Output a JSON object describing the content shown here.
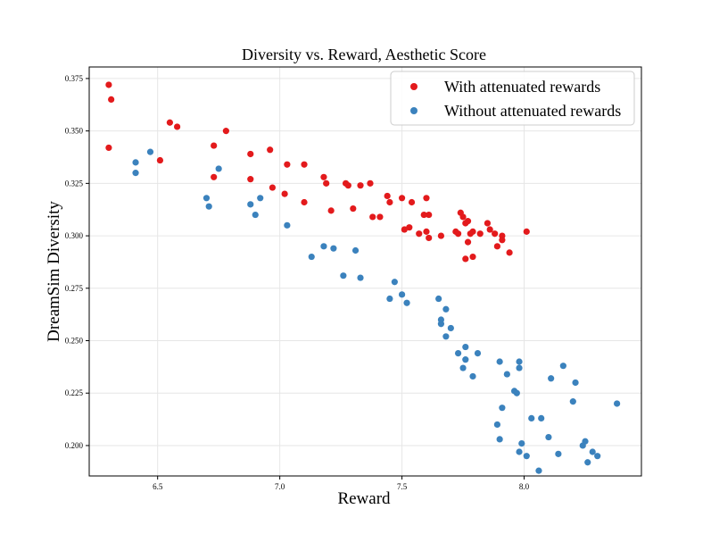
{
  "chart_data": {
    "type": "scatter",
    "title": "Diversity vs. Reward,  Aesthetic Score",
    "xlabel": "Reward",
    "ylabel": "DreamSim Diversity",
    "xlim": [
      6.22,
      8.48
    ],
    "ylim": [
      0.1855,
      0.3805
    ],
    "xticks": [
      6.5,
      7.0,
      7.5,
      8.0
    ],
    "xtick_labels": [
      "6.5",
      "7.0",
      "7.5",
      "8.0"
    ],
    "yticks": [
      0.2,
      0.225,
      0.25,
      0.275,
      0.3,
      0.325,
      0.35,
      0.375
    ],
    "ytick_labels": [
      "0.200",
      "0.225",
      "0.250",
      "0.275",
      "0.300",
      "0.325",
      "0.350",
      "0.375"
    ],
    "grid": true,
    "legend_position": "top-right",
    "series": [
      {
        "name": "With attenuated rewards",
        "color": "#e31a1c",
        "points": [
          [
            6.3,
            0.372
          ],
          [
            6.31,
            0.365
          ],
          [
            6.3,
            0.342
          ],
          [
            6.55,
            0.354
          ],
          [
            6.58,
            0.352
          ],
          [
            6.51,
            0.336
          ],
          [
            6.73,
            0.343
          ],
          [
            6.78,
            0.35
          ],
          [
            6.73,
            0.328
          ],
          [
            6.88,
            0.339
          ],
          [
            6.96,
            0.341
          ],
          [
            6.88,
            0.327
          ],
          [
            6.97,
            0.323
          ],
          [
            7.02,
            0.32
          ],
          [
            7.03,
            0.334
          ],
          [
            7.1,
            0.334
          ],
          [
            7.1,
            0.316
          ],
          [
            7.18,
            0.328
          ],
          [
            7.19,
            0.325
          ],
          [
            7.21,
            0.312
          ],
          [
            7.27,
            0.325
          ],
          [
            7.28,
            0.324
          ],
          [
            7.3,
            0.313
          ],
          [
            7.33,
            0.324
          ],
          [
            7.37,
            0.325
          ],
          [
            7.38,
            0.309
          ],
          [
            7.41,
            0.309
          ],
          [
            7.44,
            0.319
          ],
          [
            7.45,
            0.316
          ],
          [
            7.5,
            0.318
          ],
          [
            7.51,
            0.303
          ],
          [
            7.53,
            0.304
          ],
          [
            7.54,
            0.316
          ],
          [
            7.57,
            0.301
          ],
          [
            7.59,
            0.31
          ],
          [
            7.6,
            0.318
          ],
          [
            7.61,
            0.31
          ],
          [
            7.6,
            0.302
          ],
          [
            7.61,
            0.299
          ],
          [
            7.66,
            0.3
          ],
          [
            7.72,
            0.302
          ],
          [
            7.73,
            0.301
          ],
          [
            7.74,
            0.311
          ],
          [
            7.75,
            0.309
          ],
          [
            7.76,
            0.306
          ],
          [
            7.77,
            0.307
          ],
          [
            7.77,
            0.297
          ],
          [
            7.78,
            0.301
          ],
          [
            7.79,
            0.302
          ],
          [
            7.76,
            0.289
          ],
          [
            7.79,
            0.29
          ],
          [
            7.82,
            0.301
          ],
          [
            7.85,
            0.306
          ],
          [
            7.86,
            0.303
          ],
          [
            7.88,
            0.301
          ],
          [
            7.89,
            0.295
          ],
          [
            7.91,
            0.3
          ],
          [
            7.91,
            0.298
          ],
          [
            7.94,
            0.292
          ],
          [
            8.01,
            0.302
          ]
        ]
      },
      {
        "name": "Without attenuated rewards",
        "color": "#3b82bd",
        "points": [
          [
            6.41,
            0.335
          ],
          [
            6.41,
            0.33
          ],
          [
            6.47,
            0.34
          ],
          [
            6.7,
            0.318
          ],
          [
            6.71,
            0.314
          ],
          [
            6.75,
            0.332
          ],
          [
            6.88,
            0.315
          ],
          [
            6.9,
            0.31
          ],
          [
            6.92,
            0.318
          ],
          [
            7.03,
            0.305
          ],
          [
            7.13,
            0.29
          ],
          [
            7.18,
            0.295
          ],
          [
            7.22,
            0.294
          ],
          [
            7.26,
            0.281
          ],
          [
            7.31,
            0.293
          ],
          [
            7.33,
            0.28
          ],
          [
            7.45,
            0.27
          ],
          [
            7.47,
            0.278
          ],
          [
            7.5,
            0.272
          ],
          [
            7.52,
            0.268
          ],
          [
            7.65,
            0.27
          ],
          [
            7.66,
            0.258
          ],
          [
            7.66,
            0.26
          ],
          [
            7.68,
            0.265
          ],
          [
            7.68,
            0.252
          ],
          [
            7.7,
            0.256
          ],
          [
            7.73,
            0.244
          ],
          [
            7.75,
            0.237
          ],
          [
            7.76,
            0.247
          ],
          [
            7.76,
            0.241
          ],
          [
            7.79,
            0.233
          ],
          [
            7.81,
            0.244
          ],
          [
            7.89,
            0.21
          ],
          [
            7.9,
            0.24
          ],
          [
            7.9,
            0.203
          ],
          [
            7.91,
            0.218
          ],
          [
            7.93,
            0.234
          ],
          [
            7.96,
            0.226
          ],
          [
            7.97,
            0.225
          ],
          [
            7.98,
            0.24
          ],
          [
            7.98,
            0.237
          ],
          [
            7.98,
            0.197
          ],
          [
            7.99,
            0.201
          ],
          [
            8.01,
            0.195
          ],
          [
            8.03,
            0.213
          ],
          [
            8.06,
            0.188
          ],
          [
            8.07,
            0.213
          ],
          [
            8.1,
            0.204
          ],
          [
            8.11,
            0.232
          ],
          [
            8.14,
            0.196
          ],
          [
            8.16,
            0.238
          ],
          [
            8.2,
            0.221
          ],
          [
            8.21,
            0.23
          ],
          [
            8.24,
            0.2
          ],
          [
            8.25,
            0.202
          ],
          [
            8.26,
            0.192
          ],
          [
            8.28,
            0.197
          ],
          [
            8.3,
            0.195
          ],
          [
            8.38,
            0.22
          ]
        ]
      }
    ]
  }
}
